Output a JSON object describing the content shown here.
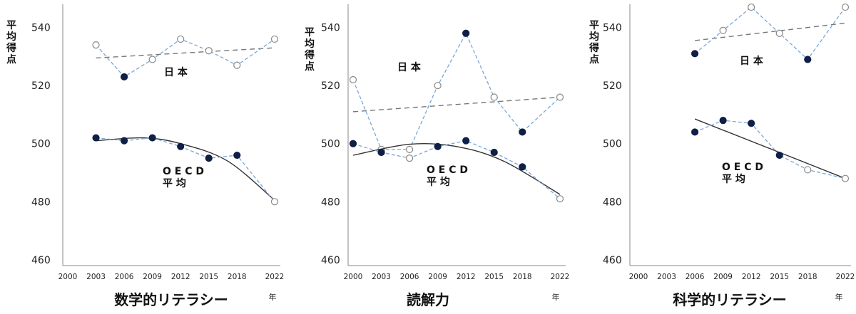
{
  "chart_data": [
    {
      "type": "line",
      "title": "数学的リテラシー",
      "ylabel": "平均得点",
      "xlabel": "年",
      "x": [
        "2000",
        "2003",
        "2006",
        "2009",
        "2012",
        "2015",
        "2018",
        "2022"
      ],
      "ylim": [
        458,
        548
      ],
      "yticks": [
        460,
        480,
        500,
        520,
        540
      ],
      "series": [
        {
          "name": "日本",
          "color": "#7aa7d6",
          "values": [
            null,
            534,
            523,
            529,
            536,
            532,
            527,
            536
          ],
          "filled": [
            null,
            false,
            true,
            false,
            false,
            false,
            false,
            false
          ],
          "trend_line": {
            "kind": "linear",
            "from": [
              2003,
              529.5
            ],
            "to": [
              2022,
              533
            ]
          }
        },
        {
          "name": "OECD平均",
          "color": "#7aa7d6",
          "values": [
            null,
            502,
            501,
            502,
            499,
            495,
            496,
            480
          ],
          "filled": [
            null,
            true,
            true,
            true,
            true,
            true,
            true,
            false
          ],
          "trend_line": {
            "kind": "quadratic",
            "points": [
              [
                2003,
                501
              ],
              [
                2008,
                502
              ],
              [
                2012,
                500
              ],
              [
                2017,
                494
              ],
              [
                2022,
                480.5
              ]
            ]
          }
        }
      ]
    },
    {
      "type": "line",
      "title": "読解力",
      "ylabel": "平均得点",
      "xlabel": "年",
      "x": [
        "2000",
        "2003",
        "2006",
        "2009",
        "2012",
        "2015",
        "2018",
        "2022"
      ],
      "ylim": [
        458,
        548
      ],
      "yticks": [
        460,
        480,
        500,
        520,
        540
      ],
      "series": [
        {
          "name": "日本",
          "color": "#7aa7d6",
          "values": [
            522,
            498,
            498,
            520,
            538,
            516,
            504,
            516
          ],
          "filled": [
            false,
            false,
            false,
            false,
            true,
            false,
            true,
            false
          ],
          "trend_line": {
            "kind": "linear",
            "from": [
              2000,
              511
            ],
            "to": [
              2022,
              516
            ]
          }
        },
        {
          "name": "OECD平均",
          "color": "#7aa7d6",
          "values": [
            500,
            497,
            495,
            499,
            501,
            497,
            492,
            481
          ],
          "filled": [
            true,
            true,
            false,
            true,
            true,
            true,
            true,
            false
          ],
          "trend_line": {
            "kind": "quadratic",
            "points": [
              [
                2000,
                496
              ],
              [
                2006,
                499.8
              ],
              [
                2011,
                499
              ],
              [
                2016,
                494
              ],
              [
                2022,
                482.5
              ]
            ]
          }
        }
      ]
    },
    {
      "type": "line",
      "title": "科学的リテラシー",
      "ylabel": "平均得点",
      "xlabel": "年",
      "x": [
        "2000",
        "2003",
        "2006",
        "2009",
        "2012",
        "2015",
        "2018",
        "2022"
      ],
      "ylim": [
        458,
        548
      ],
      "yticks": [
        460,
        480,
        500,
        520,
        540
      ],
      "series": [
        {
          "name": "日本",
          "color": "#7aa7d6",
          "values": [
            null,
            null,
            531,
            539,
            547,
            538,
            529,
            547
          ],
          "filled": [
            null,
            null,
            true,
            false,
            false,
            false,
            true,
            false
          ],
          "trend_line": {
            "kind": "linear",
            "from": [
              2006,
              535.5
            ],
            "to": [
              2022,
              541.5
            ]
          }
        },
        {
          "name": "OECD平均",
          "color": "#7aa7d6",
          "values": [
            null,
            null,
            504,
            508,
            507,
            496,
            491,
            488
          ],
          "filled": [
            null,
            null,
            true,
            true,
            true,
            true,
            false,
            false
          ],
          "trend_line": {
            "kind": "linear",
            "from": [
              2006,
              508.5
            ],
            "to": [
              2022,
              488
            ]
          }
        }
      ]
    }
  ],
  "labels": {
    "japan": "日 本",
    "oecd_line1": "O E C D",
    "oecd_line2": "平 均",
    "ylabel": "平均得点",
    "nen": "年"
  },
  "colors": {
    "series_dashed": "#7aa7d6",
    "marker_dark": "#0f1f45",
    "trend_japan": "#777777",
    "trend_oecd": "#333333",
    "axis": "#888888"
  }
}
